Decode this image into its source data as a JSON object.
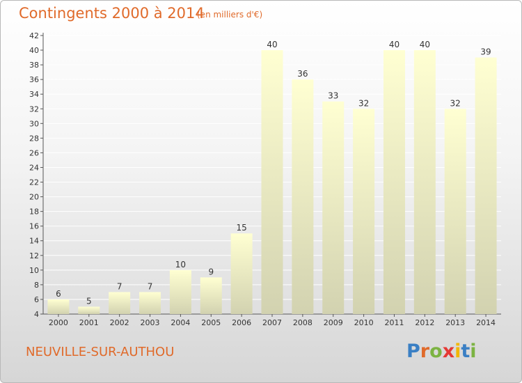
{
  "title": "Contingents 2000 à 2014",
  "subtitle": "(en milliers d'€)",
  "commune": "NEUVILLE-SUR-AUTHOU",
  "logo": {
    "text": "Proxiti",
    "letters": [
      {
        "ch": "P",
        "color": "#3a7fc4"
      },
      {
        "ch": "r",
        "color": "#e06a2a"
      },
      {
        "ch": "o",
        "color": "#7cb342"
      },
      {
        "ch": "x",
        "color": "#e53935"
      },
      {
        "ch": "i",
        "color": "#f2b705"
      },
      {
        "ch": "t",
        "color": "#3a7fc4"
      },
      {
        "ch": "i",
        "color": "#7cb342"
      }
    ]
  },
  "colors": {
    "title": "#e06a2a",
    "bar_top": "#ffffd2",
    "bar_bottom": "#d2d2b0",
    "axis": "#555555",
    "grid": "#ffffff"
  },
  "chart_data": {
    "type": "bar",
    "title": "Contingents 2000 à 2014",
    "subtitle": "(en milliers d'€)",
    "categories": [
      "2000",
      "2001",
      "2002",
      "2003",
      "2004",
      "2005",
      "2006",
      "2007",
      "2008",
      "2009",
      "2010",
      "2011",
      "2012",
      "2013",
      "2014"
    ],
    "values": [
      6,
      5,
      7,
      7,
      10,
      9,
      15,
      40,
      36,
      33,
      32,
      40,
      40,
      32,
      39
    ],
    "yticks": [
      4,
      6,
      8,
      10,
      12,
      14,
      16,
      18,
      20,
      22,
      24,
      26,
      28,
      30,
      32,
      34,
      36,
      38,
      40,
      42
    ],
    "ylim": [
      4,
      42
    ],
    "grid": true,
    "xlabel": "",
    "ylabel": ""
  }
}
